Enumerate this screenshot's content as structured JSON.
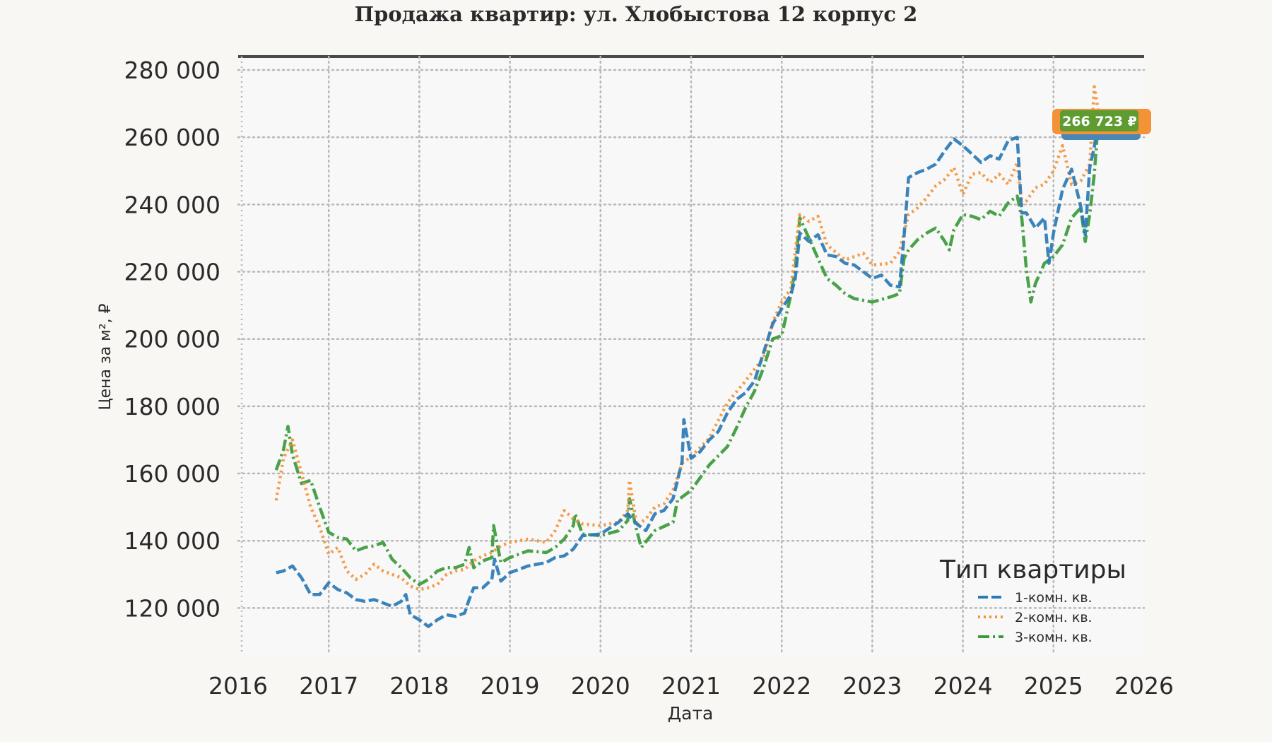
{
  "chart_data": {
    "type": "line",
    "title": "Продажа квартир: ул. Хлобыстова 12 корпус 2",
    "xlabel": "Дата",
    "ylabel": "Цена за м², ₽",
    "xlim": [
      2016.0,
      2026.0
    ],
    "ylim": [
      106000,
      284000
    ],
    "x_ticks": [
      "2016",
      "2017",
      "2018",
      "2019",
      "2020",
      "2021",
      "2022",
      "2023",
      "2024",
      "2025",
      "2026"
    ],
    "y_ticks": [
      "120 000",
      "140 000",
      "160 000",
      "180 000",
      "200 000",
      "220 000",
      "240 000",
      "260 000",
      "280 000"
    ],
    "grid": true,
    "legend": {
      "title": "Тип квартиры",
      "placement": "bottom-right"
    },
    "end_label": "266 723 ₽",
    "colors": {
      "one_room": "#2a7ab5",
      "two_room": "#f39237",
      "three_room": "#3a9a3a"
    },
    "series": [
      {
        "name": "1-комн. кв.",
        "style": "dashed",
        "points": [
          [
            2016.42,
            130500
          ],
          [
            2016.5,
            131000
          ],
          [
            2016.6,
            132500
          ],
          [
            2016.7,
            129000
          ],
          [
            2016.8,
            124000
          ],
          [
            2016.9,
            124000
          ],
          [
            2017.0,
            127500
          ],
          [
            2017.1,
            125500
          ],
          [
            2017.2,
            124500
          ],
          [
            2017.3,
            122500
          ],
          [
            2017.4,
            122000
          ],
          [
            2017.5,
            122500
          ],
          [
            2017.6,
            121500
          ],
          [
            2017.7,
            120500
          ],
          [
            2017.8,
            122000
          ],
          [
            2017.85,
            124000
          ],
          [
            2017.9,
            118000
          ],
          [
            2018.0,
            116500
          ],
          [
            2018.1,
            114500
          ],
          [
            2018.2,
            116500
          ],
          [
            2018.3,
            118000
          ],
          [
            2018.4,
            117500
          ],
          [
            2018.5,
            118500
          ],
          [
            2018.55,
            122500
          ],
          [
            2018.6,
            126000
          ],
          [
            2018.7,
            126000
          ],
          [
            2018.8,
            128500
          ],
          [
            2018.83,
            134500
          ],
          [
            2018.9,
            128000
          ],
          [
            2019.0,
            130500
          ],
          [
            2019.2,
            132500
          ],
          [
            2019.4,
            133500
          ],
          [
            2019.5,
            135000
          ],
          [
            2019.6,
            135500
          ],
          [
            2019.7,
            137500
          ],
          [
            2019.8,
            141500
          ],
          [
            2020.0,
            142000
          ],
          [
            2020.2,
            145500
          ],
          [
            2020.3,
            148000
          ],
          [
            2020.4,
            145000
          ],
          [
            2020.5,
            143000
          ],
          [
            2020.6,
            148000
          ],
          [
            2020.7,
            149000
          ],
          [
            2020.8,
            152500
          ],
          [
            2020.9,
            163500
          ],
          [
            2020.92,
            176000
          ],
          [
            2021.0,
            164500
          ],
          [
            2021.1,
            166500
          ],
          [
            2021.2,
            170000
          ],
          [
            2021.3,
            172500
          ],
          [
            2021.4,
            178000
          ],
          [
            2021.5,
            182000
          ],
          [
            2021.6,
            184000
          ],
          [
            2021.7,
            187500
          ],
          [
            2021.8,
            196000
          ],
          [
            2021.9,
            204500
          ],
          [
            2022.0,
            209000
          ],
          [
            2022.1,
            213000
          ],
          [
            2022.15,
            218000
          ],
          [
            2022.2,
            231500
          ],
          [
            2022.3,
            229000
          ],
          [
            2022.4,
            231000
          ],
          [
            2022.5,
            225000
          ],
          [
            2022.6,
            224500
          ],
          [
            2022.7,
            222500
          ],
          [
            2022.8,
            222000
          ],
          [
            2022.9,
            220000
          ],
          [
            2023.0,
            218000
          ],
          [
            2023.1,
            219000
          ],
          [
            2023.2,
            216000
          ],
          [
            2023.3,
            215500
          ],
          [
            2023.35,
            230500
          ],
          [
            2023.4,
            248000
          ],
          [
            2023.5,
            249500
          ],
          [
            2023.6,
            250500
          ],
          [
            2023.7,
            252000
          ],
          [
            2023.8,
            256000
          ],
          [
            2023.9,
            259500
          ],
          [
            2024.0,
            257500
          ],
          [
            2024.1,
            255000
          ],
          [
            2024.2,
            252500
          ],
          [
            2024.3,
            254500
          ],
          [
            2024.4,
            253500
          ],
          [
            2024.5,
            259000
          ],
          [
            2024.6,
            260000
          ],
          [
            2024.65,
            237500
          ],
          [
            2024.7,
            237500
          ],
          [
            2024.8,
            233000
          ],
          [
            2024.9,
            236000
          ],
          [
            2024.95,
            222500
          ],
          [
            2025.0,
            231500
          ],
          [
            2025.1,
            244500
          ],
          [
            2025.2,
            250500
          ],
          [
            2025.3,
            239500
          ],
          [
            2025.35,
            231000
          ],
          [
            2025.4,
            251000
          ],
          [
            2025.45,
            257000
          ],
          [
            2025.5,
            266723
          ]
        ]
      },
      {
        "name": "2-комн. кв.",
        "style": "dotted",
        "points": [
          [
            2016.42,
            152000
          ],
          [
            2016.5,
            164500
          ],
          [
            2016.6,
            170000
          ],
          [
            2016.7,
            160000
          ],
          [
            2016.8,
            150000
          ],
          [
            2016.9,
            144000
          ],
          [
            2017.0,
            136000
          ],
          [
            2017.1,
            138000
          ],
          [
            2017.2,
            131000
          ],
          [
            2017.3,
            128500
          ],
          [
            2017.4,
            130000
          ],
          [
            2017.5,
            133000
          ],
          [
            2017.6,
            131000
          ],
          [
            2017.7,
            130000
          ],
          [
            2017.8,
            129000
          ],
          [
            2017.9,
            126500
          ],
          [
            2018.0,
            125500
          ],
          [
            2018.1,
            126000
          ],
          [
            2018.2,
            127000
          ],
          [
            2018.3,
            130000
          ],
          [
            2018.4,
            131000
          ],
          [
            2018.5,
            131500
          ],
          [
            2018.6,
            134000
          ],
          [
            2018.7,
            135500
          ],
          [
            2018.8,
            136500
          ],
          [
            2018.9,
            138500
          ],
          [
            2019.0,
            139500
          ],
          [
            2019.2,
            140500
          ],
          [
            2019.4,
            139500
          ],
          [
            2019.5,
            143000
          ],
          [
            2019.6,
            149000
          ],
          [
            2019.7,
            146500
          ],
          [
            2019.8,
            145000
          ],
          [
            2020.0,
            144500
          ],
          [
            2020.2,
            145500
          ],
          [
            2020.3,
            149000
          ],
          [
            2020.32,
            158000
          ],
          [
            2020.4,
            144500
          ],
          [
            2020.5,
            146500
          ],
          [
            2020.6,
            150000
          ],
          [
            2020.7,
            151000
          ],
          [
            2020.8,
            155000
          ],
          [
            2020.9,
            163000
          ],
          [
            2021.0,
            165000
          ],
          [
            2021.2,
            170500
          ],
          [
            2021.4,
            181000
          ],
          [
            2021.6,
            187500
          ],
          [
            2021.8,
            194500
          ],
          [
            2021.9,
            205000
          ],
          [
            2022.0,
            211000
          ],
          [
            2022.1,
            215000
          ],
          [
            2022.2,
            237000
          ],
          [
            2022.3,
            235000
          ],
          [
            2022.4,
            236500
          ],
          [
            2022.5,
            228000
          ],
          [
            2022.7,
            223500
          ],
          [
            2022.9,
            225500
          ],
          [
            2023.0,
            222000
          ],
          [
            2023.2,
            222500
          ],
          [
            2023.3,
            226000
          ],
          [
            2023.4,
            237000
          ],
          [
            2023.5,
            239000
          ],
          [
            2023.6,
            242000
          ],
          [
            2023.7,
            245500
          ],
          [
            2023.8,
            247500
          ],
          [
            2023.9,
            251000
          ],
          [
            2024.0,
            243000
          ],
          [
            2024.1,
            249000
          ],
          [
            2024.2,
            249500
          ],
          [
            2024.3,
            246500
          ],
          [
            2024.4,
            249000
          ],
          [
            2024.5,
            246000
          ],
          [
            2024.6,
            252500
          ],
          [
            2024.65,
            240000
          ],
          [
            2024.7,
            241000
          ],
          [
            2024.8,
            245000
          ],
          [
            2024.9,
            246000
          ],
          [
            2025.0,
            250000
          ],
          [
            2025.1,
            257500
          ],
          [
            2025.2,
            246000
          ],
          [
            2025.3,
            247000
          ],
          [
            2025.4,
            252000
          ],
          [
            2025.45,
            275000
          ],
          [
            2025.5,
            266723
          ]
        ]
      },
      {
        "name": "3-комн. кв.",
        "style": "dashdot",
        "points": [
          [
            2016.42,
            161000
          ],
          [
            2016.5,
            167000
          ],
          [
            2016.55,
            174000
          ],
          [
            2016.6,
            165500
          ],
          [
            2016.7,
            157000
          ],
          [
            2016.8,
            158000
          ],
          [
            2016.9,
            150000
          ],
          [
            2017.0,
            142500
          ],
          [
            2017.1,
            141000
          ],
          [
            2017.2,
            140500
          ],
          [
            2017.3,
            137000
          ],
          [
            2017.4,
            138000
          ],
          [
            2017.5,
            138500
          ],
          [
            2017.6,
            139500
          ],
          [
            2017.7,
            134500
          ],
          [
            2017.8,
            132000
          ],
          [
            2017.9,
            129000
          ],
          [
            2018.0,
            127000
          ],
          [
            2018.1,
            128500
          ],
          [
            2018.2,
            131000
          ],
          [
            2018.3,
            132000
          ],
          [
            2018.4,
            132000
          ],
          [
            2018.5,
            133000
          ],
          [
            2018.55,
            138000
          ],
          [
            2018.6,
            132000
          ],
          [
            2018.7,
            134000
          ],
          [
            2018.8,
            135000
          ],
          [
            2018.82,
            144500
          ],
          [
            2018.9,
            133500
          ],
          [
            2019.0,
            135000
          ],
          [
            2019.2,
            137000
          ],
          [
            2019.4,
            136500
          ],
          [
            2019.5,
            138000
          ],
          [
            2019.6,
            140500
          ],
          [
            2019.7,
            144500
          ],
          [
            2019.72,
            148000
          ],
          [
            2019.8,
            142000
          ],
          [
            2020.0,
            141500
          ],
          [
            2020.2,
            143000
          ],
          [
            2020.3,
            146000
          ],
          [
            2020.32,
            152500
          ],
          [
            2020.4,
            143000
          ],
          [
            2020.45,
            138000
          ],
          [
            2020.6,
            143000
          ],
          [
            2020.8,
            145500
          ],
          [
            2020.85,
            152000
          ],
          [
            2021.0,
            155000
          ],
          [
            2021.2,
            162500
          ],
          [
            2021.4,
            168000
          ],
          [
            2021.5,
            173500
          ],
          [
            2021.6,
            179500
          ],
          [
            2021.7,
            184500
          ],
          [
            2021.8,
            191500
          ],
          [
            2021.9,
            200000
          ],
          [
            2022.0,
            201000
          ],
          [
            2022.1,
            213000
          ],
          [
            2022.15,
            221000
          ],
          [
            2022.2,
            236000
          ],
          [
            2022.3,
            230000
          ],
          [
            2022.4,
            224000
          ],
          [
            2022.5,
            218000
          ],
          [
            2022.6,
            216000
          ],
          [
            2022.7,
            213500
          ],
          [
            2022.8,
            212000
          ],
          [
            2022.9,
            211500
          ],
          [
            2023.0,
            211000
          ],
          [
            2023.2,
            212500
          ],
          [
            2023.3,
            213500
          ],
          [
            2023.35,
            224000
          ],
          [
            2023.4,
            226500
          ],
          [
            2023.5,
            229500
          ],
          [
            2023.6,
            231500
          ],
          [
            2023.7,
            233000
          ],
          [
            2023.8,
            229000
          ],
          [
            2023.85,
            226500
          ],
          [
            2023.9,
            232500
          ],
          [
            2024.0,
            237000
          ],
          [
            2024.1,
            236500
          ],
          [
            2024.2,
            235500
          ],
          [
            2024.3,
            238000
          ],
          [
            2024.4,
            236500
          ],
          [
            2024.5,
            240500
          ],
          [
            2024.6,
            242500
          ],
          [
            2024.65,
            236000
          ],
          [
            2024.7,
            221000
          ],
          [
            2024.75,
            211000
          ],
          [
            2024.8,
            216500
          ],
          [
            2024.9,
            222500
          ],
          [
            2025.0,
            224500
          ],
          [
            2025.1,
            228000
          ],
          [
            2025.2,
            236000
          ],
          [
            2025.3,
            239000
          ],
          [
            2025.35,
            229000
          ],
          [
            2025.4,
            237000
          ],
          [
            2025.45,
            249000
          ],
          [
            2025.5,
            266723
          ]
        ]
      }
    ]
  }
}
